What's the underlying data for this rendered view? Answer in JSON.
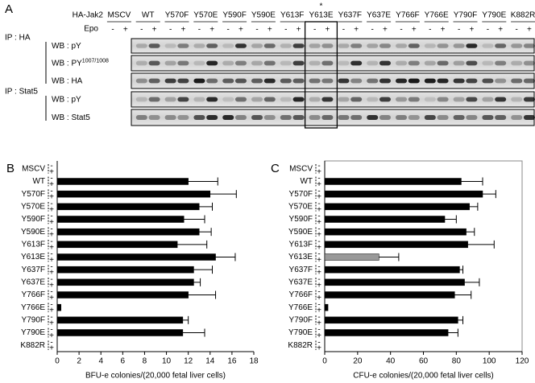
{
  "panel_a": {
    "label": "A",
    "header": "HA-Jak2",
    "epo_label": "Epo",
    "signs": [
      "-",
      "+"
    ],
    "asterisk": "*",
    "lanes": [
      "MSCV",
      "WT",
      "Y570F",
      "Y570E",
      "Y590F",
      "Y590E",
      "Y613F",
      "Y613E",
      "Y637F",
      "Y637E",
      "Y766F",
      "Y766E",
      "Y790F",
      "Y790E",
      "K882R"
    ],
    "ip_ha": "IP : HA",
    "ip_stat5": "IP : Stat5",
    "blots": [
      {
        "name": "WB : pY"
      },
      {
        "name": "WB : PY",
        "superscript": "1007/1008"
      },
      {
        "name": "WB : HA"
      },
      {
        "name": "WB : pY"
      },
      {
        "name": "WB : Stat5"
      }
    ]
  },
  "chart_data": [
    {
      "type": "bar",
      "panel": "B",
      "xlabel": "BFU-e colonies/(20,000 fetal liver cells)",
      "categories": [
        "MSCV",
        "WT",
        "Y570F",
        "Y570E",
        "Y590F",
        "Y590E",
        "Y613F",
        "Y613E",
        "Y637F",
        "Y637E",
        "Y766F",
        "Y766E",
        "Y790F",
        "Y790E",
        "K882R"
      ],
      "signs": [
        "-",
        "+"
      ],
      "values": [
        0,
        12,
        14,
        13,
        11.6,
        13,
        11,
        14.5,
        12.5,
        12.5,
        12,
        0.35,
        11.5,
        11.5,
        0
      ],
      "errors": [
        0,
        2.7,
        2.4,
        1.2,
        1.9,
        1.1,
        2.7,
        1.8,
        1.7,
        0.6,
        2.5,
        0,
        0.5,
        2,
        0
      ],
      "color": "#000000",
      "xlim": [
        0,
        18
      ],
      "xticks": [
        0,
        2,
        4,
        6,
        8,
        10,
        12,
        14,
        16,
        18
      ],
      "frame": false
    },
    {
      "type": "bar",
      "panel": "C",
      "xlabel": "CFU-e colonies/(20,000 fetal liver cells)",
      "categories": [
        "MSCV",
        "WT",
        "Y570F",
        "Y570E",
        "Y590F",
        "Y590E",
        "Y613F",
        "Y613E",
        "Y637F",
        "Y637E",
        "Y766F",
        "Y766E",
        "Y790F",
        "Y790E",
        "K882R"
      ],
      "signs": [
        "-",
        "+"
      ],
      "values": [
        0,
        83,
        96,
        88,
        73,
        86,
        87,
        33,
        82,
        85,
        79,
        2,
        81,
        75,
        0
      ],
      "errors": [
        0,
        13,
        8,
        5,
        7,
        5,
        16,
        12,
        2,
        9,
        10,
        0,
        3,
        6,
        0
      ],
      "colors": [
        "#000000",
        "#000000",
        "#000000",
        "#000000",
        "#000000",
        "#000000",
        "#000000",
        "#999999",
        "#000000",
        "#000000",
        "#000000",
        "#000000",
        "#000000",
        "#000000",
        "#000000"
      ],
      "xlim": [
        0,
        120
      ],
      "xticks": [
        0,
        20,
        40,
        60,
        80,
        100,
        120
      ],
      "frame": true
    }
  ]
}
